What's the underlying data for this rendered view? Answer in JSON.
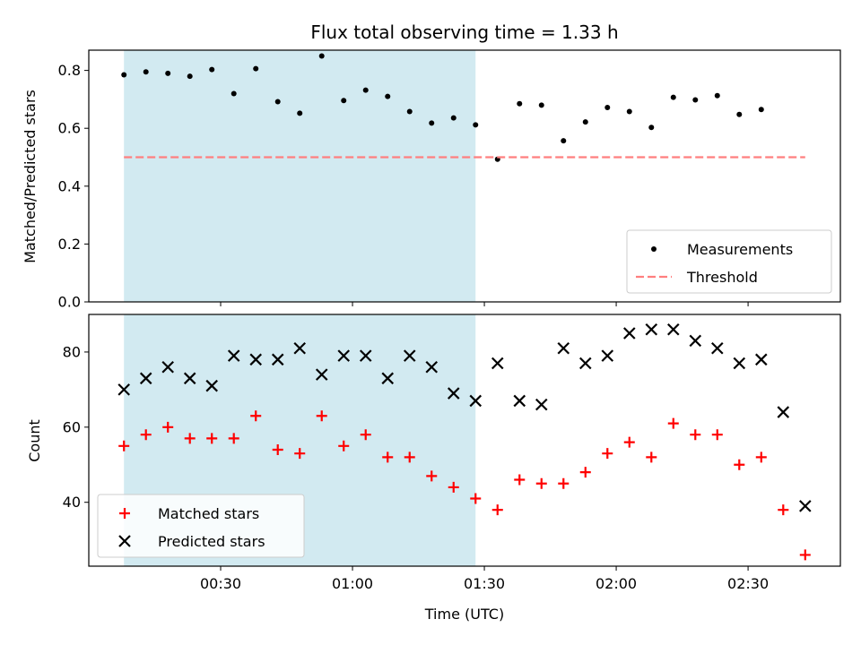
{
  "chart_data": {
    "title": "Flux total observing time = 1.33 h",
    "xlabel": "Time (UTC)",
    "x_ticks": [
      "00:30",
      "01:00",
      "01:30",
      "02:00",
      "02:30"
    ],
    "x_tick_minutes": [
      30,
      60,
      90,
      120,
      150
    ],
    "xlim_minutes": [
      0,
      171
    ],
    "shaded_region_minutes": [
      8,
      88
    ],
    "shade_color": "#add8e6",
    "panels": [
      {
        "type": "scatter",
        "ylabel": "Matched/Predicted stars",
        "ylim": [
          0,
          0.87
        ],
        "y_ticks": [
          0.0,
          0.2,
          0.4,
          0.6,
          0.8
        ],
        "y_tick_labels": [
          "0.0",
          "0.2",
          "0.4",
          "0.6",
          "0.8"
        ],
        "legend": "lower-right",
        "series": [
          {
            "name": "Measurements",
            "marker": "dot",
            "color": "#000000",
            "x": [
              8,
              13,
              18,
              23,
              28,
              33,
              38,
              43,
              48,
              53,
              58,
              63,
              68,
              73,
              78,
              83,
              88,
              93,
              98,
              103,
              108,
              113,
              118,
              123,
              128,
              133,
              138,
              143,
              148,
              153
            ],
            "y": [
              0.785,
              0.795,
              0.79,
              0.78,
              0.803,
              0.72,
              0.806,
              0.692,
              0.652,
              0.85,
              0.696,
              0.732,
              0.71,
              0.658,
              0.618,
              0.636,
              0.612,
              0.493,
              0.685,
              0.68,
              0.557,
              0.622,
              0.672,
              0.658,
              0.603,
              0.707,
              0.698,
              0.713,
              0.648,
              0.665
            ]
          },
          {
            "name": "Threshold",
            "marker": "dashed-line",
            "color": "#ff7f7f",
            "x": [
              8,
              163
            ],
            "y": [
              0.5,
              0.5
            ]
          }
        ]
      },
      {
        "type": "scatter",
        "ylabel": "Count",
        "ylim": [
          23,
          90
        ],
        "y_ticks": [
          40,
          60,
          80
        ],
        "y_tick_labels": [
          "40",
          "60",
          "80"
        ],
        "legend": "lower-left",
        "series": [
          {
            "name": "Matched stars",
            "marker": "plus",
            "color": "#ff0000",
            "x": [
              8,
              13,
              18,
              23,
              28,
              33,
              38,
              43,
              48,
              53,
              58,
              63,
              68,
              73,
              78,
              83,
              88,
              93,
              98,
              103,
              108,
              113,
              118,
              123,
              128,
              133,
              138,
              143,
              148,
              153,
              158,
              163
            ],
            "y": [
              55,
              58,
              60,
              57,
              57,
              57,
              63,
              54,
              53,
              63,
              55,
              58,
              52,
              52,
              47,
              44,
              41,
              38,
              46,
              45,
              45,
              48,
              53,
              56,
              52,
              61,
              58,
              58,
              50,
              52,
              38,
              26
            ]
          },
          {
            "name": "Predicted stars",
            "marker": "x",
            "color": "#000000",
            "x": [
              8,
              13,
              18,
              23,
              28,
              33,
              38,
              43,
              48,
              53,
              58,
              63,
              68,
              73,
              78,
              83,
              88,
              93,
              98,
              103,
              108,
              113,
              118,
              123,
              128,
              133,
              138,
              143,
              148,
              153,
              158,
              163
            ],
            "y": [
              70,
              73,
              76,
              73,
              71,
              79,
              78,
              78,
              81,
              74,
              79,
              79,
              73,
              79,
              76,
              69,
              67,
              77,
              67,
              66,
              81,
              77,
              79,
              85,
              86,
              86,
              83,
              81,
              77,
              78,
              64,
              39
            ]
          }
        ]
      }
    ]
  }
}
